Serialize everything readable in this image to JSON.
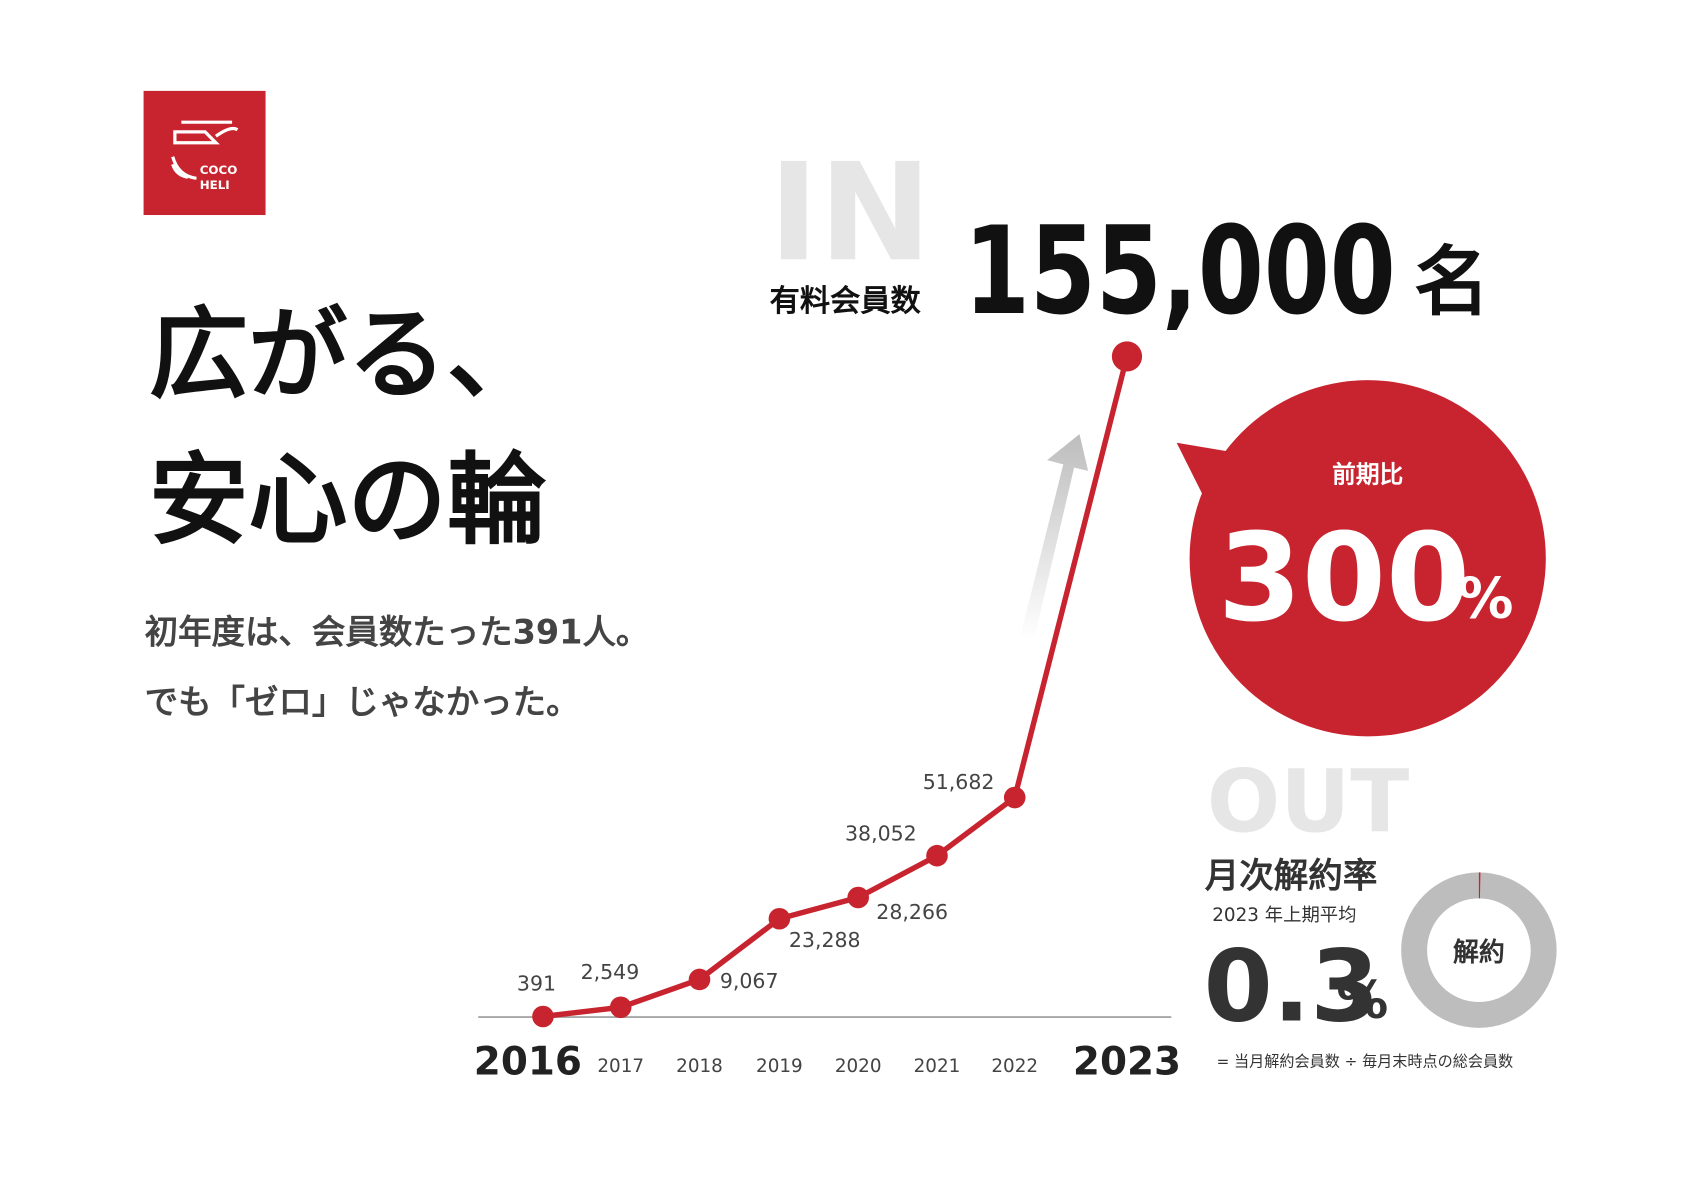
{
  "logo": {
    "line1": "COCO",
    "line2": "HELI"
  },
  "headline": [
    "広がる、",
    "安心の輪"
  ],
  "lead": [
    "初年度は、会員数たった391人。",
    "でも「ゼロ」じゃなかった。"
  ],
  "in_section": {
    "label": "IN",
    "metric": "有料会員数",
    "unit": "名"
  },
  "chart_data": {
    "type": "line",
    "categories": [
      "2016",
      "2017",
      "2018",
      "2019",
      "2020",
      "2021",
      "2022",
      "2023"
    ],
    "values": [
      391,
      2549,
      9067,
      23288,
      28266,
      38052,
      51682,
      155000
    ],
    "value_labels": [
      "391",
      "2,549",
      "9,067",
      "23,288",
      "28,266",
      "38,052",
      "51,682",
      "155,000"
    ],
    "color": "#c8242f"
  },
  "growth": {
    "label": "前期比",
    "value": 300,
    "unit": "%"
  },
  "out_section": {
    "label": "OUT",
    "metric": "月次解約率",
    "period": "2023 年上期平均",
    "value": 0.3,
    "unit": "%",
    "donut_label": "解約",
    "note": "= 当月解約会員数 ÷ 毎月末時点の総会員数"
  }
}
